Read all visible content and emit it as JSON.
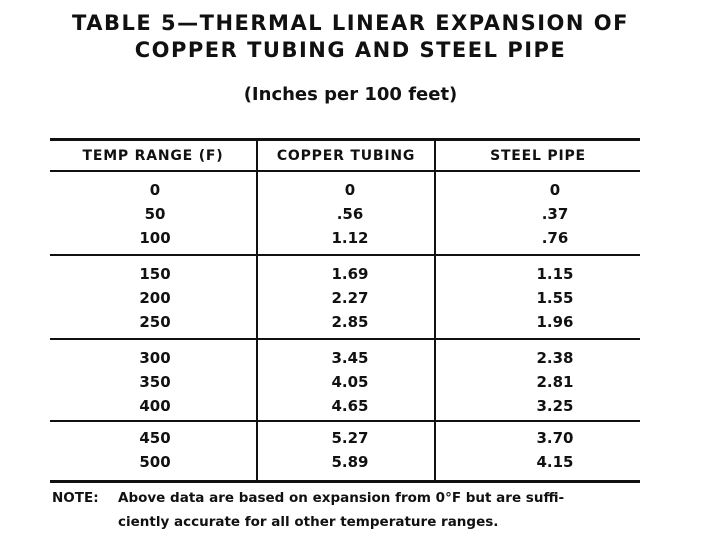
{
  "title": {
    "line1": "TABLE 5—THERMAL LINEAR EXPANSION OF",
    "line2": "COPPER TUBING AND STEEL PIPE"
  },
  "subtitle": "(Inches per 100 feet)",
  "table": {
    "headers": [
      "TEMP RANGE (F)",
      "COPPER TUBING",
      "STEEL PIPE"
    ],
    "groups": [
      [
        [
          "0",
          "0",
          "0"
        ],
        [
          "50",
          ".56",
          ".37"
        ],
        [
          "100",
          "1.12",
          ".76"
        ]
      ],
      [
        [
          "150",
          "1.69",
          "1.15"
        ],
        [
          "200",
          "2.27",
          "1.55"
        ],
        [
          "250",
          "2.85",
          "1.96"
        ]
      ],
      [
        [
          "300",
          "3.45",
          "2.38"
        ],
        [
          "350",
          "4.05",
          "2.81"
        ],
        [
          "400",
          "4.65",
          "3.25"
        ]
      ],
      [
        [
          "450",
          "5.27",
          "3.70"
        ],
        [
          "500",
          "5.89",
          "4.15"
        ]
      ]
    ]
  },
  "note": {
    "label": "NOTE:",
    "line1": "Above data are based on expansion from 0°F but are suffi-",
    "line2": "ciently accurate for all other temperature ranges."
  }
}
